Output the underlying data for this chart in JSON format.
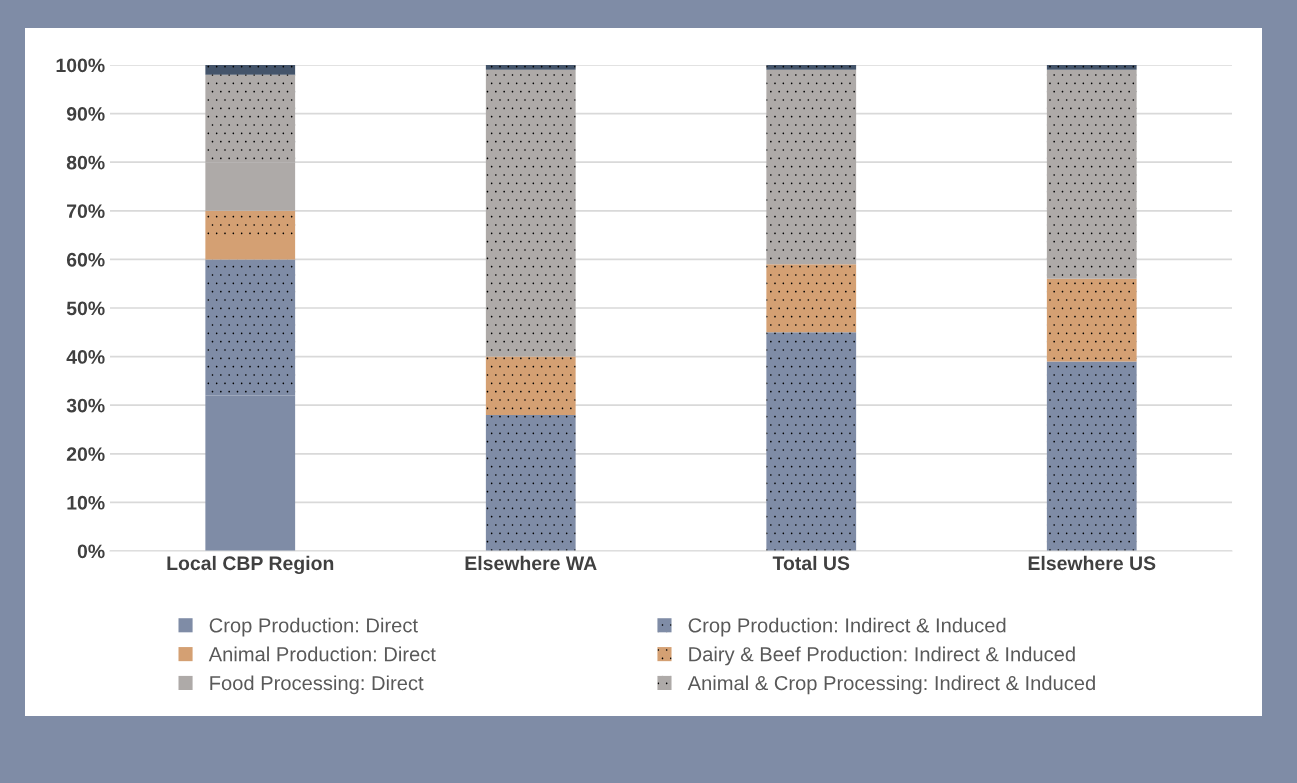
{
  "chart_data": {
    "type": "bar",
    "stacked": true,
    "categories": [
      "Local CBP Region",
      "Elsewhere WA",
      "Total US",
      "Elsewhere US"
    ],
    "series": [
      {
        "name": "Crop Production: Direct",
        "color": "#7f8ca6",
        "values": [
          32,
          0,
          0,
          0
        ]
      },
      {
        "name": "Crop Production: Indirect & Induced",
        "color": "#7f8ca6",
        "values": [
          28,
          28,
          45,
          39
        ]
      },
      {
        "name": "Animal Production: Direct",
        "color": "#d4a073",
        "values": [
          4,
          0,
          0,
          0
        ]
      },
      {
        "name": "Dairy & Beef Production: Indirect & Induced",
        "color": "#d4a073",
        "values": [
          6,
          12,
          14,
          17
        ]
      },
      {
        "name": "Food Processing: Direct",
        "color": "#aeaaa8",
        "values": [
          10,
          0,
          0,
          0
        ]
      },
      {
        "name": "Animal & Crop Processing: Indirect & Induced",
        "color": "#aeaaa8",
        "values": [
          18,
          59,
          40,
          43
        ]
      },
      {
        "color": "#44546a",
        "values": [
          2,
          1,
          1,
          1
        ]
      }
    ],
    "ylim": [
      0,
      100
    ],
    "yticks": [
      {
        "value": 0,
        "label": "0%"
      },
      {
        "value": 10,
        "label": "10%"
      },
      {
        "value": 20,
        "label": "20%"
      },
      {
        "value": 30,
        "label": "30%"
      },
      {
        "value": 40,
        "label": "40%"
      },
      {
        "value": 50,
        "label": "50%"
      },
      {
        "value": 60,
        "label": "60%"
      },
      {
        "value": 70,
        "label": "70%"
      },
      {
        "value": 80,
        "label": "80%"
      },
      {
        "value": 90,
        "label": "90%"
      },
      {
        "value": 100,
        "label": "100%"
      }
    ],
    "grid": "y",
    "legend": "bottom"
  }
}
